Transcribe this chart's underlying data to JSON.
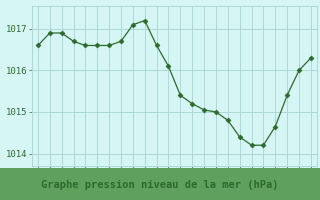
{
  "x": [
    0,
    1,
    2,
    3,
    4,
    5,
    6,
    7,
    8,
    9,
    10,
    11,
    12,
    13,
    14,
    15,
    16,
    17,
    18,
    19,
    20,
    21,
    22,
    23
  ],
  "y": [
    1016.6,
    1016.9,
    1016.9,
    1016.7,
    1016.6,
    1016.6,
    1016.6,
    1016.7,
    1017.1,
    1017.2,
    1016.6,
    1016.1,
    1015.4,
    1015.2,
    1015.05,
    1015.0,
    1014.8,
    1014.4,
    1014.2,
    1014.2,
    1014.65,
    1015.4,
    1016.0,
    1016.3
  ],
  "line_color": "#2d6a2d",
  "marker": "D",
  "marker_size": 2.5,
  "bg_color": "#d6f5f5",
  "grid_color": "#aed8d8",
  "ylabel_ticks": [
    1014,
    1015,
    1016,
    1017
  ],
  "xlabel_label": "Graphe pression niveau de la mer (hPa)",
  "xlabel_color": "#2d6a2d",
  "xlabel_bg": "#5fa05f",
  "ylim": [
    1013.7,
    1017.55
  ],
  "xlim": [
    -0.5,
    23.5
  ],
  "tick_fontsize": 6.5,
  "label_fontsize": 7.5
}
